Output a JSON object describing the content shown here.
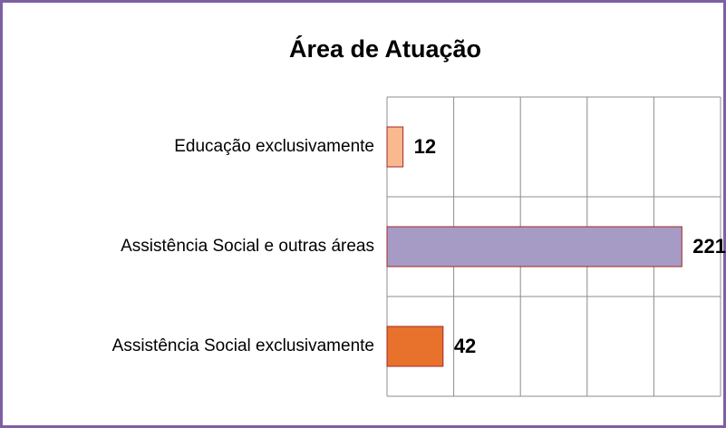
{
  "chart_data": {
    "type": "hbar",
    "title": "Área de Atuação",
    "categories": [
      "Educação exclusivamente",
      "Assistência Social e outras áreas",
      "Assistência Social exclusivamente"
    ],
    "values": [
      12,
      221,
      42
    ],
    "colors": [
      "#fab88f",
      "#a69bc5",
      "#e8722c"
    ],
    "xlim": [
      0,
      250
    ],
    "xticks": [
      0,
      50,
      100,
      150,
      200,
      250
    ],
    "grid": true
  }
}
